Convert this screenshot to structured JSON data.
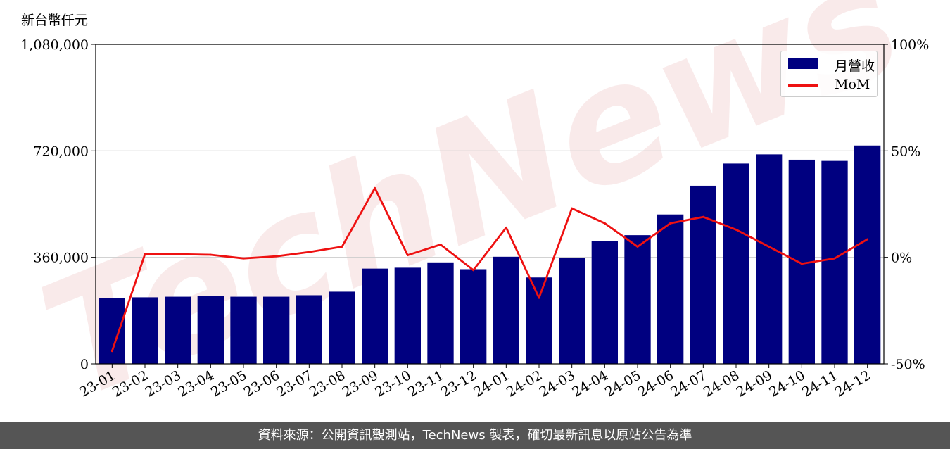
{
  "unit_label": "新台幣仟元",
  "footer_text": "資料來源：公開資訊觀測站，TechNews 製表，確切最新訊息以原站公告為準",
  "watermark_text": "TechNews",
  "colors": {
    "bar": "#000080",
    "line": "#ee1111",
    "grid": "#cccccc",
    "footer_bg": "#555555"
  },
  "chart_data": {
    "type": "bar",
    "categories": [
      "23-01",
      "23-02",
      "23-03",
      "23-04",
      "23-05",
      "23-06",
      "23-07",
      "23-08",
      "23-09",
      "23-10",
      "23-11",
      "23-12",
      "24-01",
      "24-02",
      "24-03",
      "24-04",
      "24-05",
      "24-06",
      "24-07",
      "24-08",
      "24-09",
      "24-10",
      "24-11",
      "24-12"
    ],
    "series": [
      {
        "name": "月營收",
        "type": "bar",
        "axis": "left",
        "values": [
          222000,
          225000,
          227000,
          229000,
          227000,
          227000,
          232000,
          244000,
          322000,
          325000,
          343000,
          320000,
          362000,
          292000,
          358000,
          416000,
          435000,
          505000,
          602000,
          677000,
          708000,
          690000,
          686000,
          738000
        ]
      },
      {
        "name": "MoM",
        "type": "line",
        "axis": "right",
        "unit": "%",
        "values": [
          -44,
          1.5,
          1.5,
          1.2,
          -0.5,
          0.5,
          2.5,
          5,
          32.5,
          1,
          6,
          -6,
          14,
          -19,
          23,
          16,
          5,
          16,
          19,
          13,
          5,
          -3,
          -0.5,
          8.5
        ]
      }
    ],
    "yticks_left": [
      "0",
      "360,000",
      "720,000",
      "1,080,000"
    ],
    "ylim_left": [
      0,
      1080000
    ],
    "yticks_right": [
      "-50%",
      "0%",
      "50%",
      "100%"
    ],
    "ylim_right": [
      -50,
      100
    ],
    "grid": "horizontal",
    "legend_position": "top-right"
  }
}
